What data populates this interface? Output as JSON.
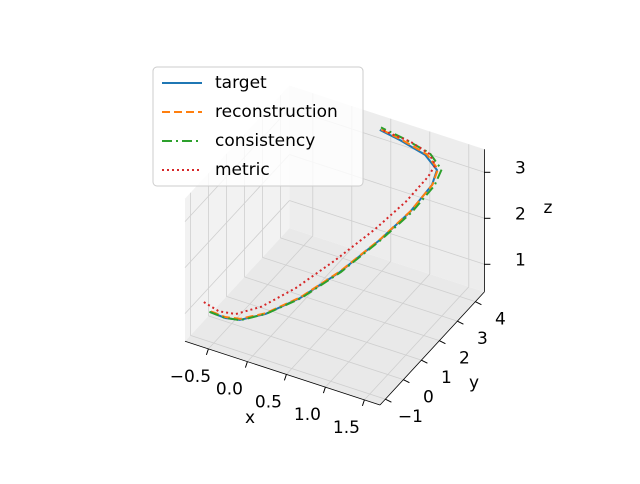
{
  "chart_data": {
    "type": "line3d",
    "xlabel": "x",
    "ylabel": "y",
    "zlabel": "z",
    "xlim": [
      -0.8,
      1.7
    ],
    "ylim": [
      -1.3,
      4.5
    ],
    "zlim": [
      0.4,
      3.5
    ],
    "xticks": [
      {
        "value": -0.5,
        "label": "−0.5"
      },
      {
        "value": 0,
        "label": "0.0"
      },
      0.5,
      {
        "value": 1,
        "label": "1.0"
      },
      1.5
    ],
    "yticks": [
      {
        "value": -1,
        "label": "−1"
      },
      0,
      1,
      2,
      3,
      4
    ],
    "zticks": [
      1,
      2,
      3
    ],
    "grid": true,
    "legend": "upper left",
    "series": [
      {
        "name": "target",
        "color": "#1f77b4",
        "style": "solid",
        "x": [
          -0.65,
          -0.47,
          -0.33,
          -0.11,
          0.15,
          0.43,
          0.7,
          0.91,
          1.09,
          1.17,
          1.0,
          0.66,
          0.41
        ],
        "y": [
          -0.55,
          -0.5,
          -0.3,
          0.17,
          0.98,
          1.97,
          3.03,
          3.79,
          4.23,
          4.16,
          4.24,
          4.32,
          4.28
        ],
        "z": [
          0.8,
          0.75,
          0.7,
          0.75,
          0.9,
          1.2,
          1.6,
          2.0,
          2.5,
          2.9,
          3.1,
          3.2,
          3.3
        ]
      },
      {
        "name": "reconstruction",
        "color": "#ff7f0e",
        "style": "dashed",
        "x": [
          -0.64,
          -0.47,
          -0.32,
          -0.1,
          0.16,
          0.44,
          0.71,
          0.92,
          1.1,
          1.18,
          1.02,
          0.68,
          0.42
        ],
        "y": [
          -0.55,
          -0.5,
          -0.3,
          0.16,
          0.97,
          1.96,
          3.02,
          3.78,
          4.22,
          4.17,
          4.25,
          4.32,
          4.28
        ],
        "z": [
          0.82,
          0.77,
          0.73,
          0.78,
          0.93,
          1.23,
          1.63,
          2.03,
          2.52,
          2.92,
          3.12,
          3.22,
          3.32
        ]
      },
      {
        "name": "consistency",
        "color": "#2ca02c",
        "style": "dashdot",
        "x": [
          -0.66,
          -0.48,
          -0.32,
          -0.1,
          0.16,
          0.44,
          0.71,
          0.93,
          1.12,
          1.22,
          1.05,
          0.7,
          0.42
        ],
        "y": [
          -0.55,
          -0.5,
          -0.3,
          0.17,
          0.98,
          1.97,
          3.03,
          3.8,
          4.25,
          4.2,
          4.28,
          4.34,
          4.3
        ],
        "z": [
          0.8,
          0.75,
          0.7,
          0.76,
          0.9,
          1.2,
          1.6,
          2.0,
          2.5,
          2.92,
          3.15,
          3.25,
          3.35
        ]
      },
      {
        "name": "metric",
        "color": "#d62728",
        "style": "dotted",
        "x": [
          -0.72,
          -0.55,
          -0.38,
          -0.15,
          0.1,
          0.38,
          0.66,
          0.88,
          1.06,
          1.15,
          1.05,
          0.8,
          0.45
        ],
        "y": [
          -0.6,
          -0.5,
          -0.3,
          0.15,
          0.95,
          1.9,
          2.95,
          3.7,
          4.15,
          4.15,
          4.25,
          4.3,
          4.3
        ],
        "z": [
          1.0,
          0.85,
          0.8,
          0.9,
          1.1,
          1.45,
          1.85,
          2.25,
          2.7,
          3.0,
          3.15,
          3.25,
          3.3
        ]
      }
    ]
  }
}
